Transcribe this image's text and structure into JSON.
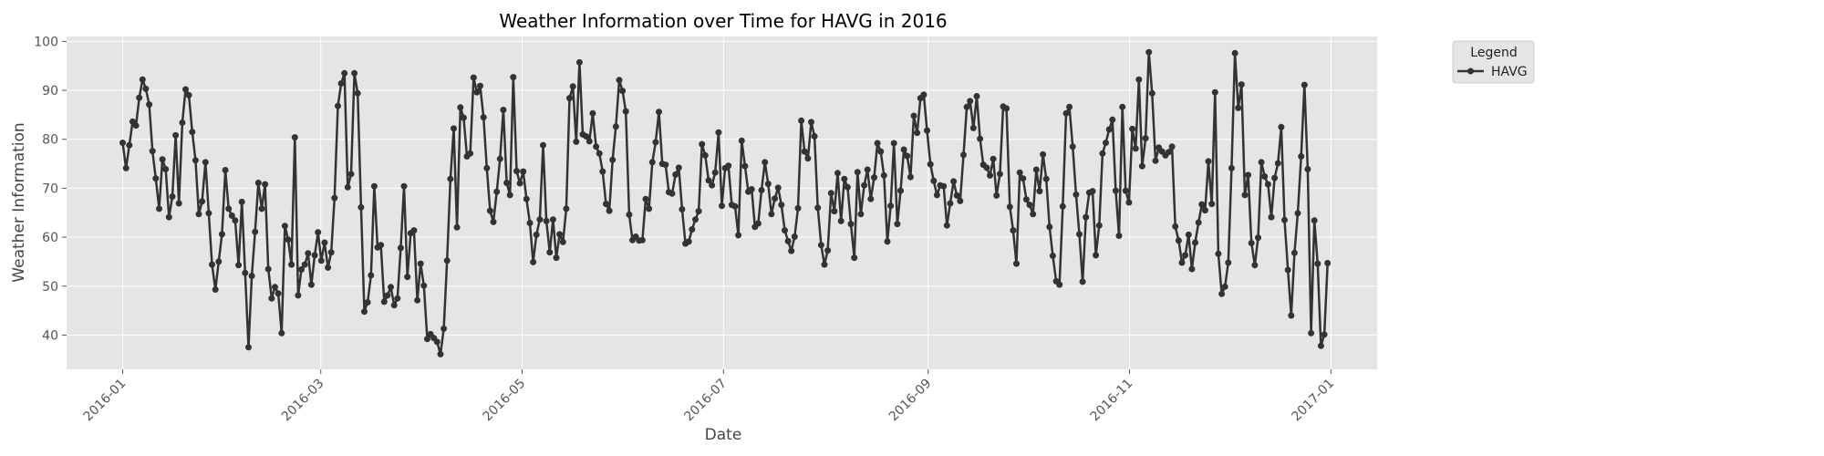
{
  "chart_data": {
    "type": "line",
    "title": "Weather Information over Time for HAVG in 2016",
    "xlabel": "Date",
    "ylabel": "Weather Information",
    "x_range": [
      "2015-12-15",
      "2017-01-15"
    ],
    "ylim": [
      33,
      101
    ],
    "grid": true,
    "colors": {
      "background": "#e5e5e5",
      "grid": "#ffffff",
      "line": "#333333"
    },
    "x_ticks": [
      "2016-01",
      "2016-03",
      "2016-05",
      "2016-07",
      "2016-09",
      "2016-11",
      "2017-01"
    ],
    "y_ticks": [
      40,
      50,
      60,
      70,
      80,
      90,
      100
    ],
    "legend": {
      "title": "Legend",
      "position": "outside-top-right",
      "entries": [
        "HAVG"
      ]
    },
    "series": [
      {
        "name": "HAVG",
        "x_start": "2016-01-01",
        "x_end": "2016-12-31",
        "values": [
          79.3,
          74.1,
          78.8,
          83.6,
          82.8,
          88.5,
          92.2,
          90.3,
          87.1,
          77.6,
          72.0,
          65.8,
          75.9,
          73.9,
          64.1,
          68.3,
          80.8,
          66.9,
          83.4,
          90.2,
          89.0,
          81.5,
          75.7,
          64.7,
          67.3,
          75.3,
          64.9,
          54.4,
          49.3,
          55.0,
          60.6,
          73.7,
          65.8,
          64.4,
          63.4,
          54.3,
          67.2,
          52.7,
          37.5,
          52.1,
          61.1,
          71.1,
          65.8,
          70.8,
          53.5,
          47.5,
          49.8,
          48.5,
          40.4,
          62.3,
          59.5,
          54.4,
          80.4,
          48.1,
          53.4,
          54.4,
          56.7,
          50.3,
          56.3,
          61.0,
          55.2,
          58.9,
          53.8,
          56.9,
          68.0,
          86.8,
          91.4,
          93.5,
          70.2,
          72.9,
          93.5,
          89.4,
          66.1,
          44.8,
          46.7,
          52.2,
          70.4,
          57.9,
          58.4,
          46.8,
          48.1,
          49.8,
          46.1,
          47.5,
          57.8,
          70.4,
          51.9,
          60.8,
          61.4,
          47.1,
          54.6,
          50.1,
          39.2,
          40.2,
          39.4,
          38.6,
          36.1,
          41.3,
          55.2,
          71.9,
          82.2,
          62.0,
          86.5,
          84.4,
          76.5,
          77.1,
          92.6,
          89.6,
          90.9,
          84.5,
          74.1,
          65.4,
          63.1,
          69.3,
          76.0,
          86.0,
          71.1,
          68.6,
          92.7,
          73.5,
          71.0,
          73.4,
          67.8,
          62.9,
          54.9,
          60.5,
          63.6,
          78.8,
          63.3,
          56.9,
          63.6,
          55.8,
          60.6,
          59.0,
          65.8,
          88.4,
          90.8,
          79.5,
          95.7,
          81.0,
          80.6,
          79.6,
          85.3,
          78.5,
          77.1,
          73.4,
          66.8,
          65.4,
          75.8,
          82.6,
          92.1,
          89.9,
          85.7,
          64.6,
          59.4,
          60.1,
          59.3,
          59.4,
          67.8,
          65.8,
          75.3,
          79.4,
          85.6,
          75.0,
          74.8,
          69.2,
          68.9,
          72.8,
          74.2,
          65.7,
          58.7,
          59.1,
          61.6,
          63.6,
          65.3,
          79.0,
          76.7,
          71.6,
          70.6,
          73.2,
          81.4,
          66.4,
          74.1,
          74.6,
          66.6,
          66.3,
          60.4,
          79.7,
          74.5,
          69.3,
          69.8,
          62.1,
          62.8,
          69.6,
          75.3,
          70.9,
          64.7,
          67.9,
          70.1,
          66.6,
          61.4,
          59.2,
          57.2,
          60.1,
          65.9,
          83.8,
          77.5,
          76.1,
          83.5,
          80.6,
          66.0,
          58.4,
          54.4,
          57.3,
          69.0,
          65.3,
          73.1,
          63.3,
          71.9,
          70.2,
          62.7,
          55.8,
          73.3,
          64.7,
          70.6,
          73.8,
          67.8,
          72.2,
          79.2,
          77.5,
          72.6,
          59.1,
          66.4,
          79.2,
          62.7,
          69.5,
          77.9,
          76.6,
          72.3,
          84.8,
          81.3,
          88.4,
          89.1,
          81.8,
          74.9,
          71.5,
          68.6,
          70.6,
          70.4,
          62.4,
          66.9,
          71.4,
          68.5,
          67.4,
          76.8,
          86.6,
          87.8,
          82.3,
          88.8,
          80.1,
          74.8,
          74.2,
          72.6,
          76.0,
          68.5,
          72.9,
          86.7,
          86.3,
          66.2,
          61.4,
          54.6,
          73.2,
          72.0,
          67.7,
          66.6,
          64.7,
          73.8,
          69.4,
          76.9,
          71.9,
          62.1,
          56.2,
          51.0,
          50.3,
          66.3,
          85.3,
          86.6,
          78.5,
          68.7,
          60.6,
          50.9,
          64.1,
          69.1,
          69.4,
          56.3,
          62.4,
          77.1,
          79.3,
          82.0,
          84.0,
          69.5,
          60.3,
          86.6,
          69.5,
          67.1,
          82.1,
          78.1,
          92.2,
          74.5,
          80.2,
          97.8,
          89.4,
          75.6,
          78.3,
          77.5,
          76.7,
          77.4,
          78.5,
          62.2,
          59.3,
          54.8,
          56.3,
          60.5,
          53.5,
          58.9,
          63.0,
          66.7,
          65.5,
          75.5,
          66.8,
          89.6,
          56.6,
          48.4,
          49.9,
          54.8,
          74.1,
          97.6,
          86.4,
          91.2,
          68.6,
          72.7,
          58.8,
          54.3,
          59.9,
          75.3,
          72.4,
          70.8,
          64.1,
          72.1,
          75.1,
          82.5,
          63.5,
          53.3,
          44.0,
          56.8,
          64.9,
          76.5,
          91.1,
          73.9,
          40.4,
          63.4,
          54.6,
          37.8,
          40.1,
          54.7
        ]
      }
    ]
  }
}
